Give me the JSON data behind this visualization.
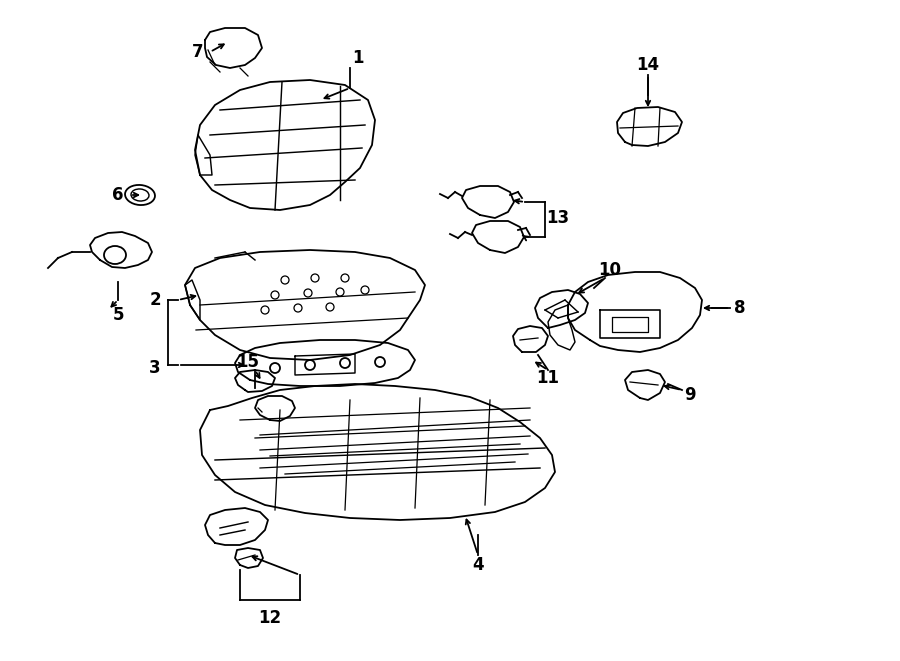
{
  "background_color": "#ffffff",
  "line_color": "#000000",
  "line_width": 1.3,
  "figsize": [
    9.0,
    6.61
  ],
  "dpi": 100,
  "xlim": [
    0,
    900
  ],
  "ylim": [
    0,
    661
  ]
}
